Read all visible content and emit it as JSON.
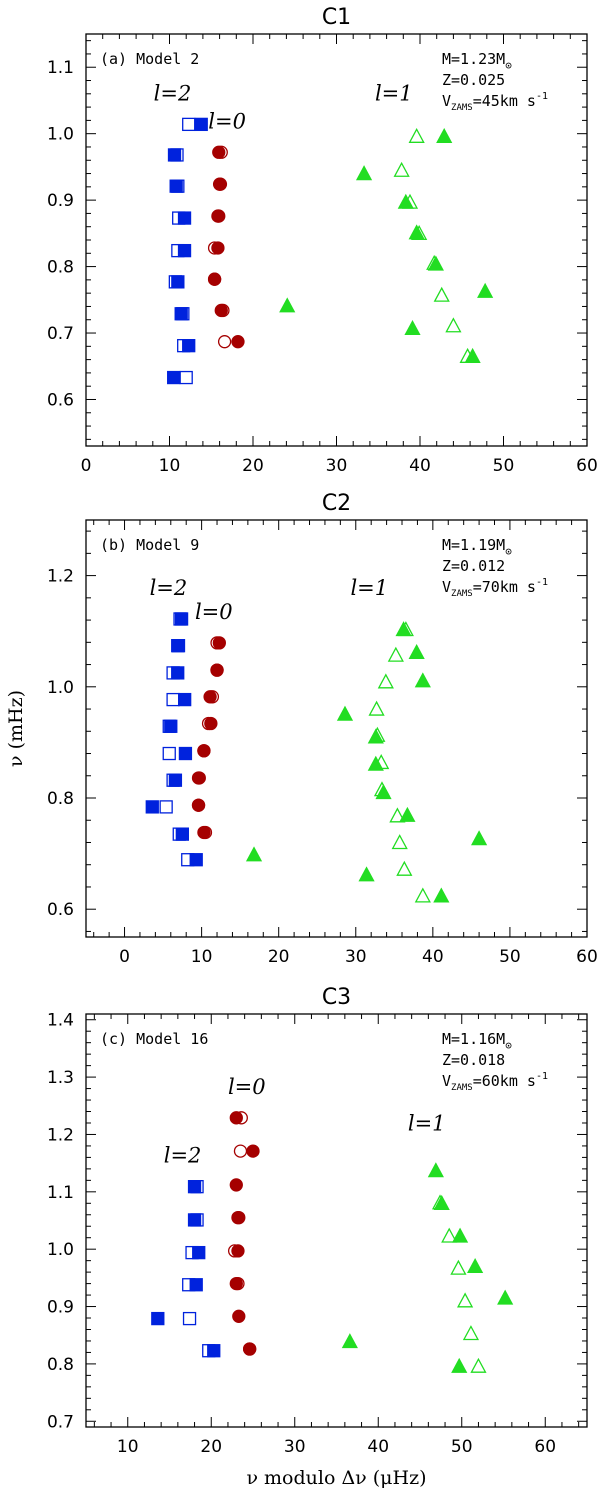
{
  "colors": {
    "l0": "#a50000",
    "l1": "#22dd22",
    "l2": "#0022dd"
  },
  "chart_data": [
    {
      "type": "scatter",
      "title": "C1",
      "panel_label": "(a) Model 2",
      "params": {
        "mass": "M=1.23M",
        "mass_sub": "⊙",
        "z": "Z=0.025",
        "v": "V",
        "v_sub": "ZAMS",
        "v_value": "=45km s",
        "v_exp": "-1"
      },
      "degree_labels": {
        "l2": "l=2",
        "l0": "l=0",
        "l1": "l=1"
      },
      "xlabel": "",
      "ylabel": "",
      "xlim": [
        0,
        60
      ],
      "ylim": [
        0.53,
        1.15
      ],
      "xticks": [
        "0",
        "10",
        "20",
        "30",
        "40",
        "50",
        "60"
      ],
      "yticks": [
        "0.6",
        "0.7",
        "0.8",
        "0.9",
        "1.0",
        "1.1"
      ],
      "series": [
        {
          "name": "l=2 model",
          "marker": "square",
          "filled": false,
          "x": [
            12.3,
            10.9,
            11.0,
            11.1,
            11.0,
            10.7,
            11.6,
            11.7,
            12.0
          ],
          "y": [
            1.014,
            0.968,
            0.921,
            0.873,
            0.824,
            0.777,
            0.729,
            0.681,
            0.633
          ]
        },
        {
          "name": "l=2 observed",
          "marker": "square",
          "filled": true,
          "x": [
            13.8,
            10.6,
            10.8,
            11.8,
            11.8,
            11.0,
            11.4,
            12.3,
            10.5
          ],
          "y": [
            1.014,
            0.968,
            0.921,
            0.873,
            0.824,
            0.777,
            0.729,
            0.681,
            0.633
          ]
        },
        {
          "name": "l=0 model",
          "marker": "circle",
          "filled": false,
          "x": [
            16.2,
            16.1,
            15.9,
            15.4,
            15.4,
            16.4,
            16.6
          ],
          "y": [
            0.972,
            0.924,
            0.876,
            0.828,
            0.781,
            0.734,
            0.687
          ]
        },
        {
          "name": "l=0 observed",
          "marker": "circle",
          "filled": true,
          "x": [
            15.9,
            16.0,
            15.8,
            15.8,
            15.4,
            16.2,
            18.2
          ],
          "y": [
            0.972,
            0.924,
            0.876,
            0.828,
            0.781,
            0.734,
            0.687
          ]
        },
        {
          "name": "l=1 model",
          "marker": "triangle",
          "filled": false,
          "x": [
            39.6,
            37.8,
            38.8,
            39.9,
            41.7,
            42.6,
            44.0,
            45.7
          ],
          "y": [
            0.996,
            0.945,
            0.897,
            0.85,
            0.805,
            0.757,
            0.711,
            0.665
          ]
        },
        {
          "name": "l=1 observed",
          "marker": "triangle",
          "filled": true,
          "x": [
            42.9,
            33.3,
            38.3,
            39.6,
            41.9,
            47.8,
            24.1,
            39.1,
            46.3
          ],
          "y": [
            0.996,
            0.94,
            0.897,
            0.851,
            0.804,
            0.763,
            0.741,
            0.707,
            0.665
          ]
        }
      ]
    },
    {
      "type": "scatter",
      "title": "C2",
      "panel_label": "(b) Model 9",
      "params": {
        "mass": "M=1.19M",
        "mass_sub": "⊙",
        "z": "Z=0.012",
        "v": "V",
        "v_sub": "ZAMS",
        "v_value": "=70km s",
        "v_exp": "-1"
      },
      "degree_labels": {
        "l2": "l=2",
        "l0": "l=0",
        "l1": "l=1"
      },
      "xlabel": "",
      "ylabel": "ν (mHz)",
      "xlim": [
        -5,
        60
      ],
      "ylim": [
        0.55,
        1.3
      ],
      "xticks": [
        "0",
        "10",
        "20",
        "30",
        "40",
        "50",
        "60"
      ],
      "yticks": [
        "0.6",
        "0.8",
        "1.0",
        "1.2"
      ],
      "series": [
        {
          "name": "l=2 model",
          "marker": "square",
          "filled": false,
          "x": [
            7.2,
            7.0,
            6.3,
            6.3,
            5.8,
            5.8,
            6.3,
            5.4,
            7.1,
            8.2
          ],
          "y": [
            1.122,
            1.074,
            1.025,
            0.977,
            0.929,
            0.88,
            0.832,
            0.784,
            0.735,
            0.689
          ]
        },
        {
          "name": "l=2 observed",
          "marker": "square",
          "filled": true,
          "x": [
            7.4,
            6.9,
            6.9,
            7.8,
            6.0,
            7.9,
            6.6,
            3.6,
            7.5,
            9.3
          ],
          "y": [
            1.122,
            1.074,
            1.025,
            0.977,
            0.929,
            0.88,
            0.832,
            0.784,
            0.735,
            0.689
          ]
        },
        {
          "name": "l=0 model",
          "marker": "circle",
          "filled": false,
          "x": [
            12.0,
            12.0,
            11.4,
            10.9,
            10.3,
            9.7,
            9.6,
            10.5
          ],
          "y": [
            1.079,
            1.03,
            0.982,
            0.934,
            0.885,
            0.836,
            0.787,
            0.738
          ]
        },
        {
          "name": "l=0 observed",
          "marker": "circle",
          "filled": true,
          "x": [
            12.3,
            12.0,
            11.1,
            11.2,
            10.3,
            9.6,
            9.6,
            10.3
          ],
          "y": [
            1.079,
            1.03,
            0.982,
            0.934,
            0.885,
            0.836,
            0.787,
            0.738
          ]
        },
        {
          "name": "l=1 model",
          "marker": "triangle",
          "filled": false,
          "x": [
            36.5,
            35.2,
            33.9,
            32.7,
            32.8,
            33.3,
            33.4,
            35.4,
            35.7,
            36.3,
            38.7
          ],
          "y": [
            1.103,
            1.057,
            1.009,
            0.96,
            0.913,
            0.864,
            0.815,
            0.768,
            0.72,
            0.672,
            0.624
          ]
        },
        {
          "name": "l=1 observed",
          "marker": "triangle",
          "filled": true,
          "x": [
            36.2,
            37.9,
            38.7,
            28.6,
            32.6,
            32.6,
            33.6,
            36.7,
            46.0,
            16.8,
            31.4,
            41.1
          ],
          "y": [
            1.103,
            1.062,
            1.011,
            0.951,
            0.91,
            0.861,
            0.81,
            0.769,
            0.727,
            0.698,
            0.662,
            0.624
          ]
        }
      ]
    },
    {
      "type": "scatter",
      "title": "C3",
      "panel_label": "(c) Model 16",
      "params": {
        "mass": "M=1.16M",
        "mass_sub": "⊙",
        "z": "Z=0.018",
        "v": "V",
        "v_sub": "ZAMS",
        "v_value": "=60km s",
        "v_exp": "-1"
      },
      "degree_labels": {
        "l2": "l=2",
        "l0": "l=0",
        "l1": "l=1"
      },
      "xlabel": "ν modulo Δν (μHz)",
      "ylabel": "",
      "xlim": [
        5,
        65
      ],
      "ylim": [
        0.69,
        1.41
      ],
      "xticks": [
        "10",
        "20",
        "30",
        "40",
        "50",
        "60"
      ],
      "yticks": [
        "0.7",
        "0.8",
        "0.9",
        "1.0",
        "1.1",
        "1.2",
        "1.3",
        "1.4"
      ],
      "series": [
        {
          "name": "l=2 model",
          "marker": "square",
          "filled": false,
          "x": [
            18.3,
            18.3,
            17.7,
            17.3,
            17.4,
            19.7
          ],
          "y": [
            1.109,
            1.051,
            0.994,
            0.938,
            0.879,
            0.823
          ]
        },
        {
          "name": "l=2 observed",
          "marker": "square",
          "filled": true,
          "x": [
            18.0,
            18.0,
            18.5,
            18.2,
            13.6,
            20.3
          ],
          "y": [
            1.109,
            1.051,
            0.994,
            0.938,
            0.879,
            0.823
          ]
        },
        {
          "name": "l=0 model",
          "marker": "circle",
          "filled": false,
          "x": [
            23.6,
            23.5,
            23.3,
            22.8,
            23.2,
            24.6
          ],
          "y": [
            1.229,
            1.171,
            1.055,
            0.997,
            0.94,
            0.826
          ]
        },
        {
          "name": "l=0 observed",
          "marker": "circle",
          "filled": true,
          "x": [
            23.0,
            25.0,
            23.0,
            23.2,
            23.2,
            23.0,
            23.3,
            24.6
          ],
          "y": [
            1.229,
            1.171,
            1.112,
            1.055,
            0.997,
            0.94,
            0.883,
            0.826
          ]
        },
        {
          "name": "l=1 model",
          "marker": "triangle",
          "filled": false,
          "x": [
            47.4,
            48.5,
            49.6,
            50.4,
            51.1,
            52.0
          ],
          "y": [
            1.081,
            1.023,
            0.967,
            0.91,
            0.853,
            0.796
          ]
        },
        {
          "name": "l=1 observed",
          "marker": "triangle",
          "filled": true,
          "x": [
            46.9,
            47.6,
            49.8,
            51.6,
            55.2,
            36.6,
            49.7
          ],
          "y": [
            1.137,
            1.08,
            1.023,
            0.97,
            0.915,
            0.839,
            0.796
          ]
        }
      ]
    }
  ]
}
